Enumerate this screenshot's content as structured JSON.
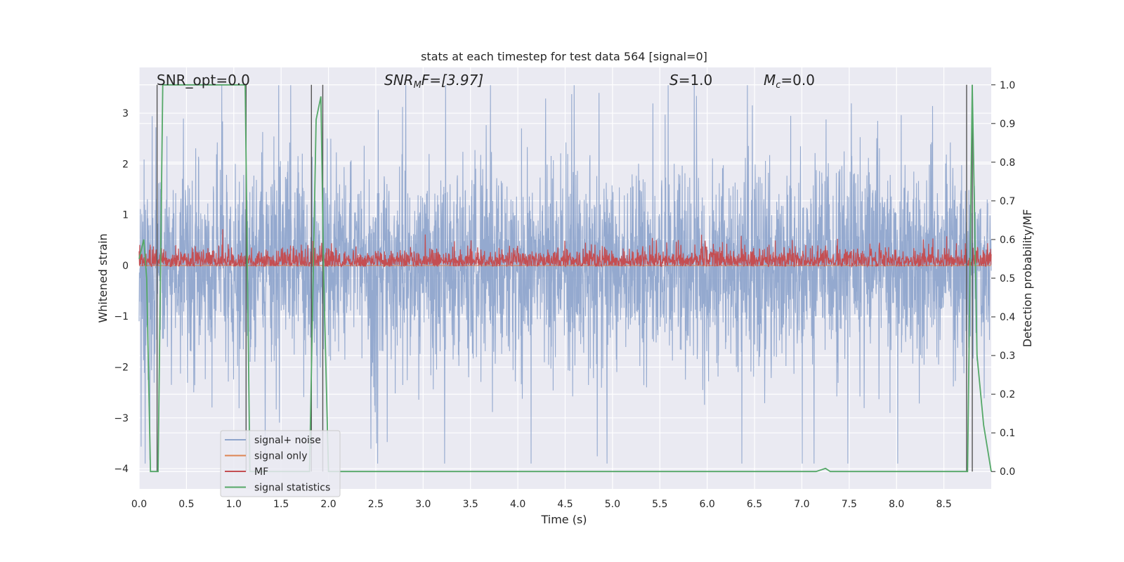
{
  "chart_data": {
    "type": "line",
    "title": "stats at each timestep for test data 564 [signal=0]",
    "xlabel": "Time (s)",
    "ylabel": "Whitened strain",
    "ylabel_right": "Detection probability/MF",
    "xlim": [
      0.0,
      9.0
    ],
    "ylim": [
      -4.4,
      3.9
    ],
    "ylim_right": [
      -0.045,
      1.045
    ],
    "x_ticks": [
      "0.0",
      "0.5",
      "1.0",
      "1.5",
      "2.0",
      "2.5",
      "3.0",
      "3.5",
      "4.0",
      "4.5",
      "5.0",
      "5.5",
      "6.0",
      "6.5",
      "7.0",
      "7.5",
      "8.0",
      "8.5"
    ],
    "y_ticks_left": [
      "3",
      "2",
      "1",
      "0",
      "−1",
      "−2",
      "−3",
      "−4"
    ],
    "y_ticks_right": [
      "1.0",
      "0.9",
      "0.8",
      "0.7",
      "0.6",
      "0.5",
      "0.4",
      "0.3",
      "0.2",
      "0.1",
      "0.0"
    ],
    "grid": true,
    "legend_position": "lower-left",
    "annotations": {
      "snr_opt": "SNR_opt=0.0",
      "snr_mf_main": "SNR",
      "snr_mf_sub": "M",
      "snr_mf_rest": "F=[3.97]",
      "s_italic": "S",
      "s_rest": "=1.0",
      "mc_main": "M",
      "mc_sub": "c",
      "mc_rest": "=0.0"
    },
    "colors": {
      "plot_bg": "#eaeaf2",
      "grid": "#ffffff",
      "signal_noise": "#8fa5cc",
      "signal_only": "#dd8452",
      "mf": "#c44e52",
      "signal_statistics": "#55a868",
      "vlines": "#555555"
    },
    "series": [
      {
        "name": "signal+ noise",
        "axis": "left",
        "description_envelope": {
          "typical_low": -1.75,
          "typical_high": 1.75,
          "spike_min": -3.9,
          "spike_max": 3.55
        }
      },
      {
        "name": "signal only",
        "axis": "left",
        "x": [
          0.0,
          9.0
        ],
        "y": [
          0.0,
          0.0
        ]
      },
      {
        "name": "MF",
        "axis": "right",
        "description_envelope": {
          "low": 0.53,
          "typical_high": 0.61,
          "spike_max": 0.66
        }
      },
      {
        "name": "signal statistics",
        "axis": "right",
        "x": [
          0.0,
          0.05,
          0.08,
          0.12,
          0.2,
          0.25,
          0.3,
          1.0,
          1.12,
          1.17,
          1.8,
          1.87,
          1.92,
          1.95,
          2.0,
          7.15,
          7.25,
          7.3,
          8.75,
          8.8,
          8.85,
          8.92,
          9.0
        ],
        "y": [
          0.55,
          0.6,
          0.5,
          0.0,
          0.0,
          1.0,
          1.0,
          1.0,
          1.0,
          0.0,
          0.0,
          0.91,
          0.97,
          0.5,
          0.0,
          0.0,
          0.008,
          0.0,
          0.0,
          1.0,
          0.3,
          0.12,
          0.0
        ]
      }
    ],
    "vertical_lines_x": [
      0.19,
      1.13,
      1.82,
      1.94,
      8.74,
      8.8
    ]
  }
}
